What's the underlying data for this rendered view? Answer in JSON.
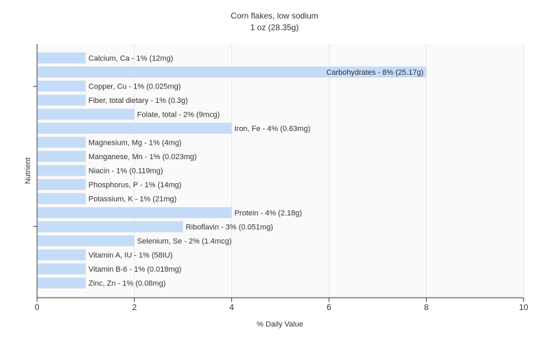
{
  "chart_data": {
    "type": "bar",
    "orientation": "horizontal",
    "title": "Corn flakes, low sodium",
    "subtitle": "1 oz (28.35g)",
    "xlabel": "% Daily Value",
    "ylabel": "Nutrient",
    "xlim": [
      0,
      10
    ],
    "xticks": [
      "0",
      "2",
      "4",
      "6",
      "8",
      "10"
    ],
    "grid": true,
    "bar_color": "#c5dcf8",
    "categories": [
      "Calcium, Ca",
      "Carbohydrates",
      "Copper, Cu",
      "Fiber, total dietary",
      "Folate, total",
      "Iron, Fe",
      "Magnesium, Mg",
      "Manganese, Mn",
      "Niacin",
      "Phosphorus, P",
      "Potassium, K",
      "Protein",
      "Riboflavin",
      "Selenium, Se",
      "Vitamin A, IU",
      "Vitamin B-6",
      "Zinc, Zn"
    ],
    "values": [
      1,
      8,
      1,
      1,
      2,
      4,
      1,
      1,
      1,
      1,
      1,
      4,
      3,
      2,
      1,
      1,
      1
    ],
    "labels": [
      "Calcium, Ca - 1% (12mg)",
      "Carbohydrates - 8% (25.17g)",
      "Copper, Cu - 1% (0.025mg)",
      "Fiber, total dietary - 1% (0.3g)",
      "Folate, total - 2% (9mcg)",
      "Iron, Fe - 4% (0.63mg)",
      "Magnesium, Mg - 1% (4mg)",
      "Manganese, Mn - 1% (0.023mg)",
      "Niacin - 1% (0.119mg)",
      "Phosphorus, P - 1% (14mg)",
      "Potassium, K - 1% (21mg)",
      "Protein - 4% (2.18g)",
      "Riboflavin - 3% (0.051mg)",
      "Selenium, Se - 2% (1.4mcg)",
      "Vitamin A, IU - 1% (58IU)",
      "Vitamin B-6 - 1% (0.018mg)",
      "Zinc, Zn - 1% (0.08mg)"
    ]
  }
}
